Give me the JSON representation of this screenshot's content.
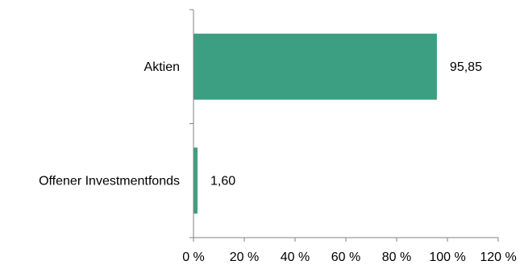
{
  "chart_data": {
    "type": "bar",
    "orientation": "horizontal",
    "categories": [
      "Aktien",
      "Offener Investmentfonds"
    ],
    "values": [
      95.85,
      1.6
    ],
    "data_labels": [
      "95,85",
      "1,60"
    ],
    "xlim": [
      0,
      120
    ],
    "x_ticks": [
      0,
      20,
      40,
      60,
      80,
      100,
      120
    ],
    "x_tick_labels": [
      "0 %",
      "20 %",
      "40 %",
      "60 %",
      "80 %",
      "100 %",
      "120 %"
    ],
    "bar_color": "#3d9f81",
    "axis_color": "#808080",
    "grid": false,
    "legend": "none"
  }
}
